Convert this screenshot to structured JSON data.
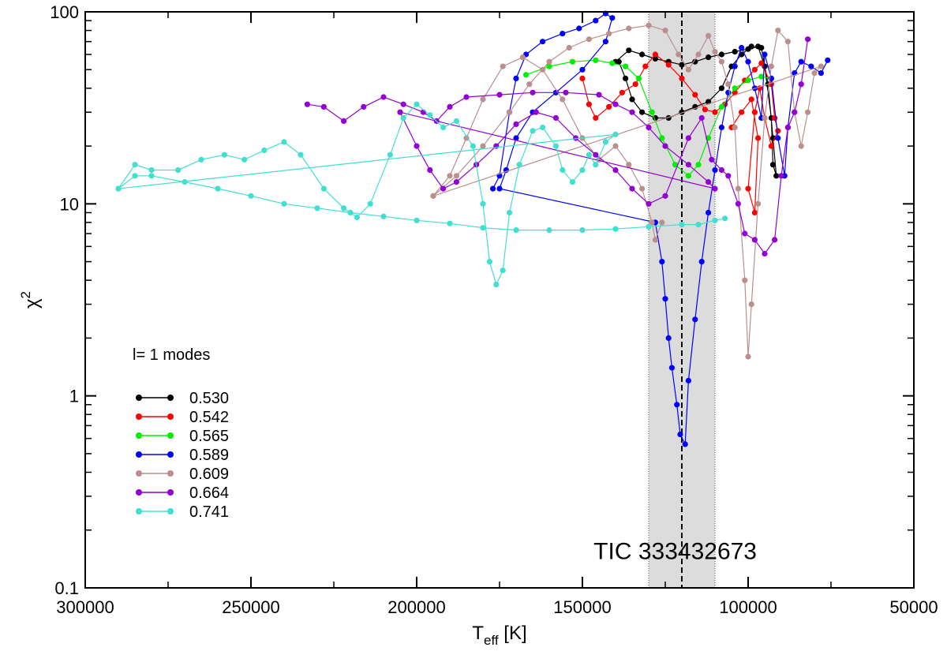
{
  "chart_data": {
    "type": "scatter",
    "xlabel": "T",
    "xlabel_sub": "eff",
    "xlabel_unit": "[K]",
    "ylabel": "χ",
    "ylabel_sup": "2",
    "xlim": [
      300000,
      50000
    ],
    "ylim": [
      0.1,
      100
    ],
    "yscale": "log",
    "x_ticks": [
      {
        "value": 300000,
        "label": "300000"
      },
      {
        "value": 250000,
        "label": "250000"
      },
      {
        "value": 200000,
        "label": "200000"
      },
      {
        "value": 150000,
        "label": "150000"
      },
      {
        "value": 100000,
        "label": "100000"
      },
      {
        "value": 50000,
        "label": "50000"
      }
    ],
    "y_ticks": [
      {
        "value": 0.1,
        "label": "0.1"
      },
      {
        "value": 1,
        "label": "1"
      },
      {
        "value": 10,
        "label": "10"
      },
      {
        "value": 100,
        "label": "100"
      }
    ],
    "legend_title": "l= 1 modes",
    "legend_position": "lower-left",
    "annotation": {
      "text": "TIC 333432673",
      "x": 122000,
      "y": 0.155
    },
    "shaded_band": {
      "x_from": 130000,
      "x_to": 110000,
      "color": "#dcdcdc"
    },
    "marker_line": {
      "x": 120000
    },
    "series": [
      {
        "name": "0.530",
        "color": "#000000",
        "points": [
          [
            140000,
            55
          ],
          [
            136000,
            63
          ],
          [
            132000,
            60
          ],
          [
            128000,
            57
          ],
          [
            124000,
            55
          ],
          [
            120000,
            53
          ],
          [
            116000,
            55
          ],
          [
            112000,
            58
          ],
          [
            108000,
            60
          ],
          [
            104000,
            62
          ],
          [
            100000,
            64
          ],
          [
            97000,
            66
          ],
          [
            95000,
            52
          ],
          [
            93000,
            28
          ],
          [
            92500,
            16
          ],
          [
            91500,
            14
          ],
          [
            92500,
            22
          ],
          [
            94000,
            42
          ],
          [
            96000,
            65
          ],
          [
            99000,
            66
          ],
          [
            102000,
            60
          ],
          [
            105000,
            52
          ],
          [
            108000,
            40
          ],
          [
            112000,
            34
          ],
          [
            116000,
            32
          ],
          [
            120000,
            30
          ],
          [
            124000,
            28
          ],
          [
            128000,
            28
          ],
          [
            132000,
            30
          ],
          [
            135000,
            35
          ],
          [
            137000,
            45
          ],
          [
            139000,
            55
          ]
        ]
      },
      {
        "name": "0.542",
        "color": "#ff0000",
        "points": [
          [
            150000,
            45
          ],
          [
            148000,
            33
          ],
          [
            146000,
            28
          ],
          [
            142000,
            32
          ],
          [
            138000,
            38
          ],
          [
            134000,
            42
          ],
          [
            131000,
            52
          ],
          [
            128000,
            60
          ],
          [
            124000,
            53
          ],
          [
            120000,
            45
          ],
          [
            116000,
            37
          ],
          [
            113000,
            31
          ],
          [
            110000,
            30
          ],
          [
            107000,
            33
          ],
          [
            104000,
            38
          ],
          [
            101000,
            44
          ],
          [
            98000,
            50
          ],
          [
            96000,
            54
          ],
          [
            93000,
            42
          ],
          [
            92000,
            28
          ],
          [
            91000,
            24
          ],
          [
            93000,
            20
          ],
          [
            95000,
            28
          ],
          [
            96500,
            40
          ],
          [
            98000,
            30
          ],
          [
            100000,
            12
          ],
          [
            98000,
            9
          ],
          [
            97000,
            22
          ],
          [
            99000,
            35
          ],
          [
            102000,
            30
          ],
          [
            105000,
            25
          ]
        ]
      },
      {
        "name": "0.565",
        "color": "#00ee00",
        "points": [
          [
            167000,
            47
          ],
          [
            160000,
            52
          ],
          [
            153000,
            55
          ],
          [
            146000,
            56
          ],
          [
            141000,
            54
          ],
          [
            137000,
            52
          ],
          [
            133000,
            45
          ],
          [
            129000,
            30
          ],
          [
            126000,
            22
          ],
          [
            122000,
            16
          ],
          [
            118000,
            14
          ],
          [
            115000,
            16
          ],
          [
            112000,
            22
          ],
          [
            108000,
            32
          ],
          [
            104000,
            40
          ],
          [
            100000,
            44
          ],
          [
            96000,
            46
          ],
          [
            93000,
            45
          ]
        ]
      },
      {
        "name": "0.589",
        "color": "#0000ff",
        "points": [
          [
            177000,
            12
          ],
          [
            175000,
            14
          ],
          [
            172000,
            30
          ],
          [
            170000,
            45
          ],
          [
            167000,
            60
          ],
          [
            162000,
            70
          ],
          [
            156000,
            77
          ],
          [
            151000,
            82
          ],
          [
            146000,
            90
          ],
          [
            143000,
            98
          ],
          [
            141000,
            93
          ],
          [
            143000,
            70
          ],
          [
            150000,
            50
          ],
          [
            158000,
            38
          ],
          [
            165000,
            30
          ],
          [
            170000,
            22
          ],
          [
            173000,
            15
          ],
          [
            175000,
            12
          ],
          [
            128000,
            8
          ],
          [
            126000,
            5
          ],
          [
            125000,
            3.2
          ],
          [
            124000,
            2.0
          ],
          [
            123000,
            1.4
          ],
          [
            121500,
            0.9
          ],
          [
            120500,
            0.63
          ],
          [
            119000,
            0.56
          ],
          [
            118000,
            1.2
          ],
          [
            116000,
            2.5
          ],
          [
            114000,
            5
          ],
          [
            112000,
            9
          ],
          [
            110000,
            15
          ],
          [
            108000,
            25
          ],
          [
            106000,
            38
          ],
          [
            104000,
            52
          ],
          [
            102000,
            65
          ],
          [
            100000,
            55
          ],
          [
            98000,
            40
          ],
          [
            96000,
            28
          ],
          [
            95000,
            60
          ],
          [
            93000,
            45
          ],
          [
            91000,
            22
          ],
          [
            89000,
            14
          ],
          [
            88000,
            25
          ],
          [
            86000,
            48
          ],
          [
            84000,
            55
          ],
          [
            81000,
            52
          ],
          [
            78000,
            48
          ],
          [
            76000,
            56
          ]
        ]
      },
      {
        "name": "0.609",
        "color": "#bc8f8f",
        "points": [
          [
            195000,
            11
          ],
          [
            188000,
            14
          ],
          [
            180000,
            20
          ],
          [
            172000,
            30
          ],
          [
            166000,
            42
          ],
          [
            160000,
            55
          ],
          [
            154000,
            65
          ],
          [
            148000,
            72
          ],
          [
            142000,
            77
          ],
          [
            136000,
            82
          ],
          [
            130000,
            85
          ],
          [
            125000,
            80
          ],
          [
            121000,
            60
          ],
          [
            118000,
            50
          ],
          [
            115000,
            60
          ],
          [
            112000,
            75
          ],
          [
            110000,
            62
          ],
          [
            108000,
            55
          ],
          [
            106000,
            42
          ],
          [
            104000,
            25
          ],
          [
            103000,
            12
          ],
          [
            101000,
            4
          ],
          [
            100000,
            1.6
          ],
          [
            99000,
            3
          ],
          [
            97000,
            10
          ],
          [
            95000,
            28
          ],
          [
            93000,
            52
          ],
          [
            91000,
            80
          ],
          [
            88000,
            70
          ],
          [
            86000,
            30
          ],
          [
            84000,
            20
          ],
          [
            82000,
            30
          ],
          [
            80000,
            48
          ],
          [
            78000,
            52
          ],
          [
            195000,
            11
          ],
          [
            190000,
            14
          ],
          [
            185000,
            22
          ],
          [
            180000,
            35
          ],
          [
            174000,
            52
          ],
          [
            168000,
            58
          ],
          [
            162000,
            50
          ],
          [
            156000,
            35
          ],
          [
            150000,
            22
          ],
          [
            145000,
            17
          ],
          [
            140000,
            20
          ],
          [
            136000,
            16
          ],
          [
            132000,
            12
          ],
          [
            129000,
            8
          ],
          [
            128000,
            6.5
          ],
          [
            126000,
            8
          ]
        ]
      },
      {
        "name": "0.664",
        "color": "#9400d3",
        "points": [
          [
            233000,
            33
          ],
          [
            228000,
            32
          ],
          [
            222000,
            27
          ],
          [
            216000,
            32
          ],
          [
            210000,
            36
          ],
          [
            204000,
            33
          ],
          [
            198000,
            30
          ],
          [
            194000,
            27
          ],
          [
            190000,
            32
          ],
          [
            185000,
            36
          ],
          [
            175000,
            37
          ],
          [
            165000,
            38
          ],
          [
            155000,
            38
          ],
          [
            145000,
            37
          ],
          [
            140000,
            33
          ],
          [
            135000,
            30
          ],
          [
            130000,
            25
          ],
          [
            125000,
            20
          ],
          [
            118000,
            16
          ],
          [
            112000,
            13
          ],
          [
            110000,
            12
          ],
          [
            205000,
            30
          ],
          [
            200000,
            20
          ],
          [
            196000,
            15
          ],
          [
            192000,
            12
          ],
          [
            188000,
            13
          ],
          [
            182000,
            16
          ],
          [
            176000,
            20
          ],
          [
            170000,
            26
          ],
          [
            164000,
            30
          ],
          [
            158000,
            28
          ],
          [
            152000,
            22
          ],
          [
            146000,
            18
          ],
          [
            140000,
            15
          ],
          [
            135000,
            12
          ],
          [
            130000,
            10
          ],
          [
            125000,
            11
          ],
          [
            118000,
            22
          ],
          [
            114000,
            28
          ],
          [
            111000,
            17
          ],
          [
            108000,
            15
          ],
          [
            106000,
            14
          ],
          [
            103000,
            10
          ],
          [
            101000,
            7
          ],
          [
            98000,
            6.5
          ],
          [
            95000,
            5.5
          ],
          [
            92000,
            6.5
          ],
          [
            90000,
            14
          ],
          [
            88000,
            25
          ],
          [
            86000,
            30
          ],
          [
            84000,
            42
          ],
          [
            82000,
            72
          ]
        ]
      },
      {
        "name": "0.741",
        "color": "#40e0d0",
        "points": [
          [
            290000,
            12
          ],
          [
            285000,
            16
          ],
          [
            280000,
            15
          ],
          [
            272000,
            15
          ],
          [
            265000,
            17
          ],
          [
            258000,
            18
          ],
          [
            252000,
            17
          ],
          [
            246000,
            19
          ],
          [
            240000,
            21
          ],
          [
            235000,
            18
          ],
          [
            228000,
            12
          ],
          [
            222000,
            9.5
          ],
          [
            218000,
            8.5
          ],
          [
            214000,
            10
          ],
          [
            208000,
            18
          ],
          [
            204000,
            28
          ],
          [
            200000,
            33
          ],
          [
            196000,
            29
          ],
          [
            192000,
            25
          ],
          [
            188000,
            27
          ],
          [
            183000,
            20
          ],
          [
            180000,
            10
          ],
          [
            178000,
            5
          ],
          [
            176000,
            3.8
          ],
          [
            174000,
            4.5
          ],
          [
            172000,
            9
          ],
          [
            169000,
            16
          ],
          [
            165000,
            24
          ],
          [
            162000,
            25
          ],
          [
            158000,
            20
          ],
          [
            156000,
            15
          ],
          [
            153000,
            13
          ],
          [
            150000,
            15
          ],
          [
            148000,
            18
          ],
          [
            146000,
            16
          ],
          [
            143000,
            21
          ],
          [
            140000,
            23
          ],
          [
            290000,
            12
          ],
          [
            285000,
            14
          ],
          [
            280000,
            14
          ],
          [
            270000,
            13
          ],
          [
            260000,
            12
          ],
          [
            250000,
            11
          ],
          [
            240000,
            10
          ],
          [
            230000,
            9.5
          ],
          [
            220000,
            9
          ],
          [
            210000,
            8.6
          ],
          [
            200000,
            8.2
          ],
          [
            190000,
            7.9
          ],
          [
            180000,
            7.5
          ],
          [
            170000,
            7.3
          ],
          [
            160000,
            7.3
          ],
          [
            150000,
            7.3
          ],
          [
            140000,
            7.4
          ],
          [
            130000,
            7.6
          ],
          [
            120000,
            7.8
          ],
          [
            115000,
            7.8
          ],
          [
            110000,
            8.2
          ],
          [
            107000,
            8.4
          ]
        ]
      }
    ]
  }
}
